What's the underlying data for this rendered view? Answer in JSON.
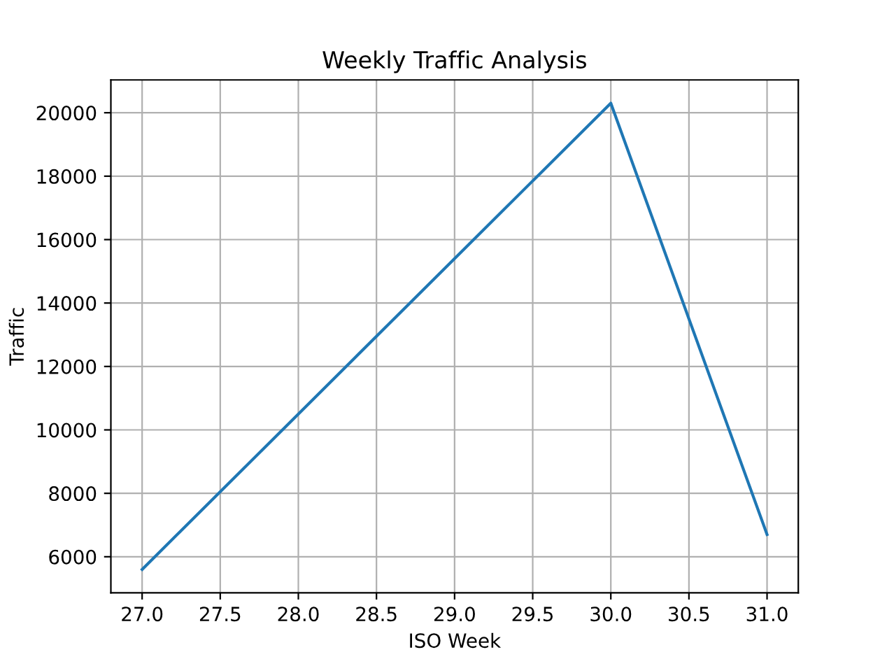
{
  "chart_data": {
    "type": "line",
    "title": "Weekly Traffic Analysis",
    "xlabel": "ISO Week",
    "ylabel": "Traffic",
    "x": [
      27,
      30,
      31
    ],
    "series": [
      {
        "color": "#1f77b4",
        "values": [
          5600,
          20300,
          6700
        ]
      }
    ],
    "xlim": [
      26.8,
      31.2
    ],
    "xticks": [
      {
        "value": 27,
        "label": "27.0"
      },
      {
        "value": 27.5,
        "label": "27.5"
      },
      {
        "value": 28,
        "label": "28.0"
      },
      {
        "value": 28.5,
        "label": "28.5"
      },
      {
        "value": 29,
        "label": "29.0"
      },
      {
        "value": 29.5,
        "label": "29.5"
      },
      {
        "value": 30,
        "label": "30.0"
      },
      {
        "value": 30.5,
        "label": "30.5"
      },
      {
        "value": 31,
        "label": "31.0"
      }
    ],
    "ylim": [
      4865,
      21035
    ],
    "yticks": [
      6000,
      8000,
      10000,
      12000,
      14000,
      16000,
      18000,
      20000
    ],
    "grid": true,
    "legend": false,
    "marker": "none",
    "line_style": "solid"
  }
}
